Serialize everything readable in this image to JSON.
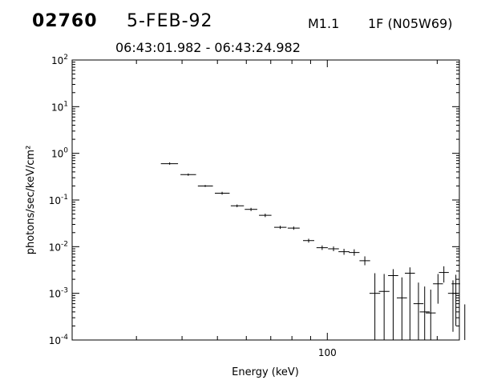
{
  "header": {
    "event_id": "02760",
    "date": "5-FEB-92",
    "goes_class": "M1.1",
    "optical": "1F (N05W69)",
    "time_range": "06:43:01.982 - 06:43:24.982"
  },
  "chart_data": {
    "type": "scatter",
    "style": "error bars",
    "xlabel": "Energy (keV)",
    "ylabel": "photons/sec/keV/cm²",
    "xscale": "log",
    "yscale": "log",
    "xlim": [
      20,
      230
    ],
    "ylim": [
      0.0001,
      100
    ],
    "x_tick_labels": [
      "100"
    ],
    "y_tick_labels": [
      {
        "value": 0.0001,
        "base": "10",
        "exp": "-4"
      },
      {
        "value": 0.001,
        "base": "10",
        "exp": "-3"
      },
      {
        "value": 0.01,
        "base": "10",
        "exp": "-2"
      },
      {
        "value": 0.1,
        "base": "10",
        "exp": "-1"
      },
      {
        "value": 1,
        "base": "10",
        "exp": "0"
      },
      {
        "value": 10,
        "base": "10",
        "exp": "1"
      },
      {
        "value": 100,
        "base": "10",
        "exp": "2"
      }
    ],
    "grid": false,
    "points": [
      {
        "x": 37.0,
        "xlo": 35.0,
        "xhi": 39.0,
        "y": 0.6,
        "ylo": 0.57,
        "yhi": 0.64
      },
      {
        "x": 41.6,
        "xlo": 39.6,
        "xhi": 43.7,
        "y": 0.35,
        "ylo": 0.33,
        "yhi": 0.37
      },
      {
        "x": 46.3,
        "xlo": 44.2,
        "xhi": 48.6,
        "y": 0.2,
        "ylo": 0.19,
        "yhi": 0.21
      },
      {
        "x": 51.5,
        "xlo": 49.2,
        "xhi": 54.0,
        "y": 0.14,
        "ylo": 0.13,
        "yhi": 0.15
      },
      {
        "x": 56.6,
        "xlo": 54.4,
        "xhi": 59.1,
        "y": 0.075,
        "ylo": 0.07,
        "yhi": 0.08
      },
      {
        "x": 61.8,
        "xlo": 59.4,
        "xhi": 64.3,
        "y": 0.063,
        "ylo": 0.058,
        "yhi": 0.068
      },
      {
        "x": 67.6,
        "xlo": 65.0,
        "xhi": 70.3,
        "y": 0.047,
        "ylo": 0.043,
        "yhi": 0.051
      },
      {
        "x": 74.3,
        "xlo": 71.5,
        "xhi": 77.3,
        "y": 0.026,
        "ylo": 0.024,
        "yhi": 0.028
      },
      {
        "x": 80.9,
        "xlo": 77.9,
        "xhi": 84.0,
        "y": 0.025,
        "ylo": 0.023,
        "yhi": 0.027
      },
      {
        "x": 88.9,
        "xlo": 85.8,
        "xhi": 92.1,
        "y": 0.0135,
        "ylo": 0.0122,
        "yhi": 0.0148
      },
      {
        "x": 96.8,
        "xlo": 93.4,
        "xhi": 100.3,
        "y": 0.0095,
        "ylo": 0.0085,
        "yhi": 0.0106
      },
      {
        "x": 104.0,
        "xlo": 100.5,
        "xhi": 107.6,
        "y": 0.009,
        "ylo": 0.008,
        "yhi": 0.0101
      },
      {
        "x": 111.1,
        "xlo": 107.3,
        "xhi": 115.0,
        "y": 0.0078,
        "ylo": 0.0067,
        "yhi": 0.009
      },
      {
        "x": 118.5,
        "xlo": 114.6,
        "xhi": 122.5,
        "y": 0.0075,
        "ylo": 0.0064,
        "yhi": 0.0088
      },
      {
        "x": 126.7,
        "xlo": 122.5,
        "xhi": 131.0,
        "y": 0.005,
        "ylo": 0.004,
        "yhi": 0.0062
      },
      {
        "x": 135.0,
        "xlo": 130.5,
        "xhi": 139.6,
        "y": 0.001,
        "ylo": 0.0001,
        "yhi": 0.0027
      },
      {
        "x": 143.1,
        "xlo": 138.4,
        "xhi": 148.0,
        "y": 0.0011,
        "ylo": 0.0001,
        "yhi": 0.0026
      },
      {
        "x": 151.5,
        "xlo": 146.7,
        "xhi": 156.4,
        "y": 0.0024,
        "ylo": 0.0001,
        "yhi": 0.0033
      },
      {
        "x": 160.1,
        "xlo": 155.0,
        "xhi": 165.3,
        "y": 0.0008,
        "ylo": 0.0001,
        "yhi": 0.0022
      },
      {
        "x": 168.4,
        "xlo": 163.1,
        "xhi": 173.8,
        "y": 0.0027,
        "ylo": 0.0001,
        "yhi": 0.0036
      },
      {
        "x": 177.7,
        "xlo": 172.2,
        "xhi": 183.4,
        "y": 0.0006,
        "ylo": 0.0001,
        "yhi": 0.0017
      },
      {
        "x": 184.8,
        "xlo": 179.1,
        "xhi": 190.7,
        "y": 0.0004,
        "ylo": 0.0001,
        "yhi": 0.0014
      },
      {
        "x": 192.0,
        "xlo": 186.1,
        "xhi": 198.1,
        "y": 0.00038,
        "ylo": 0.0001,
        "yhi": 0.0012
      },
      {
        "x": 201.0,
        "xlo": 194.8,
        "xhi": 207.4,
        "y": 0.0016,
        "ylo": 0.0006,
        "yhi": 0.0026
      },
      {
        "x": 208.6,
        "xlo": 202.2,
        "xhi": 215.2,
        "y": 0.0028,
        "ylo": 0.0017,
        "yhi": 0.0038
      },
      {
        "x": 220.9,
        "xlo": 214.1,
        "xhi": 227.9,
        "y": 0.001,
        "ylo": 0.00015,
        "yhi": 0.0019
      },
      {
        "x": 225.0,
        "xlo": 219.0,
        "xhi": 231.0,
        "y": 0.0016,
        "ylo": 0.0002,
        "yhi": 0.0025
      }
    ],
    "upper_limits": [
      {
        "x": 238.0,
        "yhi": 0.00058
      }
    ]
  }
}
